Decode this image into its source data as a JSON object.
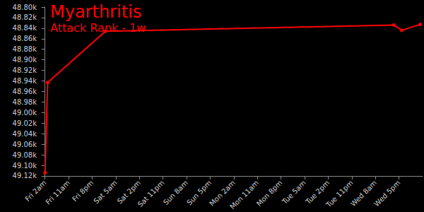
{
  "chart_data": {
    "type": "line",
    "title": "Myarthritis",
    "subtitle": "Attack Rank - 1w",
    "x": [
      0,
      1,
      23,
      133,
      136,
      143
    ],
    "values": [
      49114,
      48943,
      48846,
      48834,
      48844,
      48833
    ],
    "color": "#ff0000",
    "marker": "circle",
    "xlim": [
      -1,
      144
    ],
    "xticks": [
      {
        "value": 0,
        "label": "Fri 2am"
      },
      {
        "value": 9,
        "label": "Fri 11am"
      },
      {
        "value": 18,
        "label": "Fri 8pm"
      },
      {
        "value": 27,
        "label": "Sat 5am"
      },
      {
        "value": 36,
        "label": "Sat 2pm"
      },
      {
        "value": 45,
        "label": "Sat 11pm"
      },
      {
        "value": 54,
        "label": "Sun 8am"
      },
      {
        "value": 63,
        "label": "Sun 5pm"
      },
      {
        "value": 72,
        "label": "Mon 2am"
      },
      {
        "value": 81,
        "label": "Mon 11am"
      },
      {
        "value": 90,
        "label": "Mon 8pm"
      },
      {
        "value": 99,
        "label": "Tue 5am"
      },
      {
        "value": 108,
        "label": "Tue 2pm"
      },
      {
        "value": 117,
        "label": "Tue 11pm"
      },
      {
        "value": 126,
        "label": "Wed 8am"
      },
      {
        "value": 135,
        "label": "Wed 5pm"
      }
    ],
    "ylim": [
      48800,
      49120
    ],
    "yticks": [
      {
        "value": 48800,
        "label": "48.80k"
      },
      {
        "value": 48820,
        "label": "48.82k"
      },
      {
        "value": 48840,
        "label": "48.84k"
      },
      {
        "value": 48860,
        "label": "48.86k"
      },
      {
        "value": 48880,
        "label": "48.88k"
      },
      {
        "value": 48900,
        "label": "48.90k"
      },
      {
        "value": 48920,
        "label": "48.92k"
      },
      {
        "value": 48940,
        "label": "48.94k"
      },
      {
        "value": 48960,
        "label": "48.96k"
      },
      {
        "value": 48980,
        "label": "48.98k"
      },
      {
        "value": 49000,
        "label": "49.00k"
      },
      {
        "value": 49020,
        "label": "49.02k"
      },
      {
        "value": 49040,
        "label": "49.04k"
      },
      {
        "value": 49060,
        "label": "49.06k"
      },
      {
        "value": 49080,
        "label": "49.08k"
      },
      {
        "value": 49100,
        "label": "49.10k"
      },
      {
        "value": 49120,
        "label": "49.12k"
      }
    ],
    "grid": false
  }
}
